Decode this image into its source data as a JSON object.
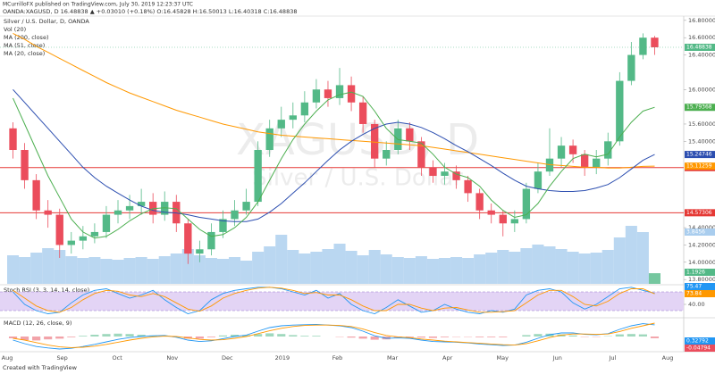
{
  "header": {
    "line1": "MCurrilloFX published on TradingView.com, July 30, 2019 12:23:37 UTC",
    "line2": "OANDA:XAGUSD, D 16.48838 ▲ +0.03010 (+0.18%) O:16.45828 H:16.50013 L:16.40318 C:16.48838"
  },
  "footer": "Created with TradingView",
  "chart_data": {
    "type": "candlestick",
    "title": "Silver / U.S. Dollar, D, OANDA",
    "watermark": {
      "symbol": "XAGUSD, D",
      "name": "Silver / U.S. Dollar"
    },
    "xticks": [
      "Aug",
      "Sep",
      "Oct",
      "Nov",
      "Dec",
      "2019",
      "Feb",
      "Mar",
      "Apr",
      "May",
      "Jun",
      "Jul",
      "Aug"
    ],
    "ylim": [
      13.75,
      16.85
    ],
    "yticks": [
      {
        "value": 13.8,
        "label": "13.80000"
      },
      {
        "value": 14.0,
        "label": "14.00000"
      },
      {
        "value": 14.2,
        "label": "14.20000"
      },
      {
        "value": 14.4,
        "label": "14.40000"
      },
      {
        "value": 15.4,
        "label": "15.40000"
      },
      {
        "value": 15.6,
        "label": "15.60000"
      },
      {
        "value": 16.0,
        "label": "16.00000"
      },
      {
        "value": 16.4,
        "label": "16.40000"
      },
      {
        "value": 16.6,
        "label": "16.60000"
      },
      {
        "value": 16.8,
        "label": "16.80000"
      }
    ],
    "up_color": "#53b987",
    "down_color": "#eb4d5c",
    "open": [
      15.55,
      15.3,
      14.95,
      14.6,
      14.55,
      14.2,
      14.25,
      14.3,
      14.35,
      14.55,
      14.6,
      14.65,
      14.7,
      14.55,
      14.7,
      14.45,
      14.1,
      14.15,
      14.35,
      14.5,
      14.6,
      14.7,
      15.3,
      15.55,
      15.65,
      15.7,
      15.85,
      16.0,
      15.9,
      16.05,
      15.85,
      15.6,
      15.2,
      15.3,
      15.55,
      15.4,
      15.1,
      15.0,
      15.05,
      14.95,
      14.8,
      14.6,
      14.55,
      14.45,
      14.5,
      14.85,
      15.05,
      15.2,
      15.35,
      15.25,
      15.1,
      15.2,
      15.4,
      16.1,
      16.4,
      16.6
    ],
    "high": [
      15.62,
      15.38,
      15.02,
      14.72,
      14.62,
      14.35,
      14.42,
      14.45,
      14.65,
      14.72,
      14.78,
      14.85,
      14.8,
      14.82,
      14.78,
      14.5,
      14.25,
      14.45,
      14.6,
      14.72,
      14.85,
      15.4,
      15.65,
      15.8,
      15.85,
      15.98,
      16.12,
      16.1,
      16.25,
      16.15,
      15.92,
      15.65,
      15.4,
      15.65,
      15.62,
      15.45,
      15.18,
      15.15,
      15.12,
      15.0,
      14.85,
      14.68,
      14.6,
      14.6,
      14.92,
      15.15,
      15.55,
      15.45,
      15.42,
      15.3,
      15.3,
      15.5,
      16.2,
      16.55,
      16.65,
      16.62
    ],
    "low": [
      15.2,
      14.85,
      14.5,
      14.4,
      14.05,
      14.1,
      14.15,
      14.22,
      14.28,
      14.45,
      14.5,
      14.55,
      14.45,
      14.48,
      14.35,
      13.98,
      14.0,
      14.08,
      14.28,
      14.42,
      14.55,
      14.65,
      15.22,
      15.45,
      15.55,
      15.62,
      15.78,
      15.8,
      15.82,
      15.75,
      15.5,
      15.1,
      15.12,
      15.25,
      15.3,
      15.0,
      14.92,
      14.9,
      14.85,
      14.7,
      14.5,
      14.45,
      14.3,
      14.35,
      14.45,
      14.8,
      15.0,
      15.1,
      15.15,
      15.0,
      15.02,
      15.12,
      15.35,
      16.05,
      16.35,
      16.4
    ],
    "close": [
      15.3,
      14.95,
      14.6,
      14.55,
      14.2,
      14.25,
      14.3,
      14.35,
      14.55,
      14.6,
      14.65,
      14.7,
      14.55,
      14.7,
      14.45,
      14.1,
      14.15,
      14.35,
      14.5,
      14.6,
      14.7,
      15.3,
      15.55,
      15.65,
      15.7,
      15.85,
      16.0,
      15.9,
      16.05,
      15.85,
      15.6,
      15.2,
      15.3,
      15.55,
      15.4,
      15.1,
      15.0,
      15.05,
      14.95,
      14.8,
      14.6,
      14.55,
      14.45,
      14.5,
      14.85,
      15.05,
      15.2,
      15.35,
      15.25,
      15.1,
      15.2,
      15.4,
      16.1,
      16.4,
      16.6,
      16.48838
    ],
    "hlines": {
      "color": "#e53935",
      "values": [
        15.09594,
        14.57306
      ]
    },
    "series": [
      {
        "name": "MA (200, close)",
        "color": "#ff9800",
        "values": [
          16.65,
          16.58,
          16.5,
          16.43,
          16.36,
          16.29,
          16.22,
          16.15,
          16.08,
          16.02,
          15.96,
          15.91,
          15.86,
          15.81,
          15.76,
          15.72,
          15.68,
          15.64,
          15.6,
          15.57,
          15.54,
          15.51,
          15.49,
          15.47,
          15.46,
          15.45,
          15.44,
          15.43,
          15.42,
          15.41,
          15.4,
          15.39,
          15.38,
          15.37,
          15.36,
          15.35,
          15.33,
          15.31,
          15.29,
          15.27,
          15.25,
          15.23,
          15.21,
          15.19,
          15.17,
          15.15,
          15.13,
          15.12,
          15.11,
          15.1,
          15.1,
          15.09,
          15.09,
          15.1,
          15.11,
          15.11259
        ]
      },
      {
        "name": "MA (51, close)",
        "color": "#2c4eb0",
        "values": [
          16.0,
          15.85,
          15.7,
          15.55,
          15.4,
          15.25,
          15.1,
          14.98,
          14.88,
          14.8,
          14.72,
          14.65,
          14.6,
          14.58,
          14.57,
          14.55,
          14.52,
          14.5,
          14.48,
          14.47,
          14.47,
          14.5,
          14.58,
          14.68,
          14.8,
          14.92,
          15.05,
          15.18,
          15.3,
          15.4,
          15.48,
          15.55,
          15.6,
          15.62,
          15.6,
          15.56,
          15.5,
          15.43,
          15.35,
          15.28,
          15.2,
          15.12,
          15.03,
          14.95,
          14.88,
          14.85,
          14.83,
          14.82,
          14.82,
          14.83,
          14.86,
          14.9,
          14.98,
          15.08,
          15.18,
          15.24746
        ]
      },
      {
        "name": "MA (20, close)",
        "color": "#4caf50",
        "values": [
          15.9,
          15.6,
          15.3,
          15.0,
          14.75,
          14.5,
          14.35,
          14.28,
          14.3,
          14.38,
          14.48,
          14.56,
          14.62,
          14.63,
          14.62,
          14.5,
          14.38,
          14.3,
          14.32,
          14.4,
          14.52,
          14.7,
          14.95,
          15.2,
          15.42,
          15.6,
          15.75,
          15.88,
          15.94,
          15.97,
          15.92,
          15.75,
          15.55,
          15.42,
          15.4,
          15.38,
          15.25,
          15.1,
          15.02,
          14.98,
          14.88,
          14.72,
          14.6,
          14.52,
          14.55,
          14.68,
          14.88,
          15.05,
          15.2,
          15.25,
          15.22,
          15.25,
          15.45,
          15.62,
          15.75,
          15.79368
        ]
      }
    ],
    "volume": {
      "name": "Vol (20)",
      "color": "#a9cdee",
      "last_color": "#53b987",
      "ma_label": "3.8456",
      "ylim": [
        0,
        12
      ],
      "values": [
        3.2,
        3.0,
        3.5,
        4.0,
        3.8,
        3.1,
        2.9,
        3.0,
        2.8,
        2.7,
        2.9,
        3.0,
        2.8,
        3.1,
        3.4,
        3.9,
        3.2,
        2.9,
        2.8,
        3.0,
        2.6,
        3.6,
        4.2,
        5.5,
        3.8,
        3.4,
        3.6,
        3.9,
        4.5,
        3.7,
        3.2,
        3.8,
        3.3,
        3.0,
        2.9,
        3.1,
        2.8,
        2.9,
        3.0,
        2.9,
        3.3,
        3.5,
        3.8,
        3.6,
        4.0,
        4.4,
        4.2,
        3.9,
        3.6,
        3.4,
        3.5,
        3.8,
        5.2,
        6.5,
        5.8,
        1.1926
      ]
    },
    "stoch_rsi": {
      "name": "Stoch RSI (3, 3, 14, 14, close)",
      "ylim": [
        0,
        100
      ],
      "band": [
        20,
        80
      ],
      "band_color": "#e3d4f5",
      "yticks": [
        {
          "value": 40,
          "label": "40.00"
        }
      ],
      "series": [
        {
          "color": "#2196f3",
          "values": [
            80,
            40,
            20,
            10,
            15,
            45,
            70,
            85,
            90,
            75,
            60,
            70,
            85,
            55,
            30,
            10,
            20,
            55,
            75,
            85,
            90,
            95,
            95,
            90,
            80,
            70,
            85,
            60,
            75,
            40,
            20,
            10,
            30,
            55,
            35,
            15,
            20,
            40,
            25,
            15,
            10,
            20,
            15,
            25,
            70,
            85,
            90,
            80,
            45,
            25,
            40,
            65,
            90,
            95,
            85,
            75.47
          ]
        },
        {
          "color": "#ff9800",
          "values": [
            85,
            60,
            35,
            20,
            15,
            30,
            55,
            75,
            85,
            82,
            70,
            65,
            75,
            65,
            45,
            25,
            18,
            35,
            60,
            75,
            85,
            92,
            95,
            92,
            85,
            75,
            78,
            70,
            70,
            55,
            35,
            20,
            20,
            40,
            40,
            28,
            20,
            28,
            30,
            22,
            15,
            15,
            17,
            20,
            45,
            70,
            85,
            85,
            65,
            40,
            35,
            50,
            75,
            90,
            90,
            73.84
          ]
        }
      ]
    },
    "macd": {
      "name": "MACD (12, 26, close, 9)",
      "ylim": [
        -0.4,
        0.5
      ],
      "hist_up": "#9fd8bd",
      "hist_down": "#f2a3a9",
      "histogram": [
        -0.05,
        -0.1,
        -0.11,
        -0.08,
        -0.06,
        -0.02,
        0.02,
        0.05,
        0.07,
        0.08,
        0.07,
        0.05,
        0.03,
        0.02,
        -0.02,
        -0.06,
        -0.06,
        -0.02,
        0.03,
        0.05,
        0.04,
        0.07,
        0.09,
        0.07,
        0.04,
        0.02,
        0.02,
        0.0,
        -0.01,
        -0.03,
        -0.06,
        -0.09,
        -0.08,
        -0.03,
        -0.02,
        -0.03,
        -0.04,
        -0.02,
        -0.01,
        -0.01,
        -0.02,
        -0.02,
        -0.02,
        0.0,
        0.04,
        0.07,
        0.08,
        0.06,
        0.03,
        -0.01,
        -0.01,
        0.01,
        0.06,
        0.07,
        0.06,
        -0.04794
      ],
      "series": [
        {
          "color": "#2196f3",
          "values": [
            -0.1,
            -0.2,
            -0.28,
            -0.32,
            -0.35,
            -0.33,
            -0.28,
            -0.22,
            -0.15,
            -0.08,
            -0.03,
            0.0,
            0.02,
            0.03,
            -0.02,
            -0.1,
            -0.14,
            -0.12,
            -0.06,
            0.0,
            0.04,
            0.15,
            0.25,
            0.3,
            0.32,
            0.33,
            0.34,
            0.32,
            0.3,
            0.25,
            0.15,
            0.02,
            -0.05,
            -0.04,
            -0.05,
            -0.1,
            -0.14,
            -0.15,
            -0.16,
            -0.18,
            -0.21,
            -0.23,
            -0.25,
            -0.24,
            -0.16,
            -0.05,
            0.05,
            0.1,
            0.1,
            0.06,
            0.05,
            0.08,
            0.2,
            0.3,
            0.36,
            0.32792
          ]
        },
        {
          "color": "#ff9800",
          "values": [
            -0.05,
            -0.1,
            -0.17,
            -0.24,
            -0.29,
            -0.31,
            -0.3,
            -0.27,
            -0.22,
            -0.16,
            -0.1,
            -0.05,
            -0.01,
            0.01,
            0.0,
            -0.04,
            -0.08,
            -0.1,
            -0.09,
            -0.05,
            0.0,
            0.08,
            0.16,
            0.23,
            0.28,
            0.31,
            0.32,
            0.32,
            0.31,
            0.28,
            0.21,
            0.11,
            0.03,
            -0.01,
            -0.03,
            -0.07,
            -0.1,
            -0.13,
            -0.15,
            -0.17,
            -0.19,
            -0.21,
            -0.23,
            -0.24,
            -0.2,
            -0.12,
            -0.03,
            0.04,
            0.07,
            0.07,
            0.06,
            0.07,
            0.14,
            0.23,
            0.3,
            0.37586
          ]
        }
      ]
    }
  }
}
